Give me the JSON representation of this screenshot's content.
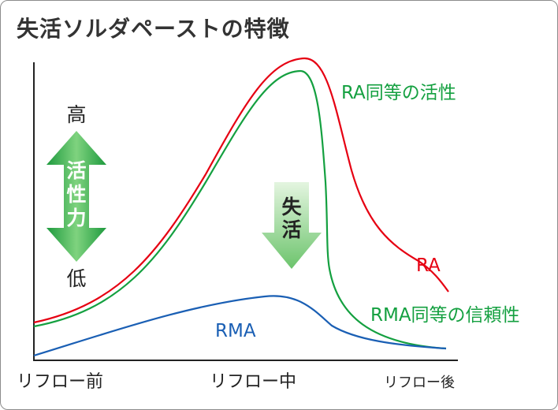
{
  "title": "失活ソルダペーストの特徴",
  "axis": {
    "x_labels": [
      "リフロー前",
      "リフロー中",
      "リフロー後"
    ],
    "y_high": "高",
    "y_low": "低",
    "y_title_chars": [
      "活",
      "性",
      "力"
    ]
  },
  "deactivation_chars": [
    "失",
    "活"
  ],
  "curves": {
    "ra": {
      "label": "RA",
      "color": "#e60012"
    },
    "ra_equiv": {
      "label": "RA同等の活性",
      "color": "#14a040"
    },
    "rma_equiv": {
      "label": "RMA同等の信頼性",
      "color": "#14a040"
    },
    "rma": {
      "label": "RMA",
      "color": "#1a5fb4"
    }
  },
  "colors": {
    "axis": "#222222",
    "text": "#222222",
    "activity_arrow_dark": "#1e9a3e",
    "activity_arrow_light": "#7fd37f",
    "deactivation_arrow_top": "#d6f0d2",
    "deactivation_arrow_bottom": "#6cc46c"
  }
}
